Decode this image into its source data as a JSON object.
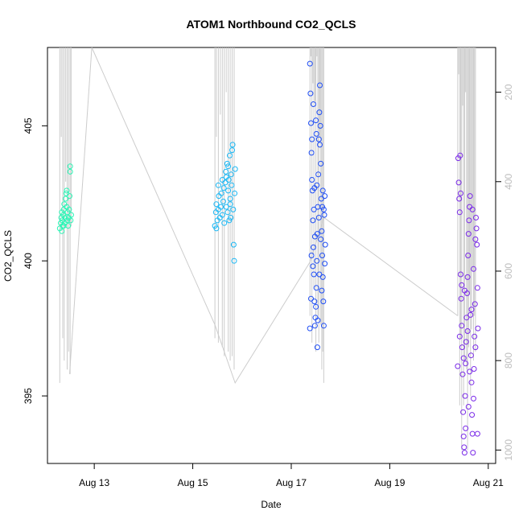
{
  "chart_data": {
    "type": "scatter",
    "title": "ATOM1 Northbound CO2_QCLS",
    "xlabel": "Date",
    "ylabel": "CO2_QCLS",
    "x_ticks": [
      "Aug 13",
      "Aug 15",
      "Aug 17",
      "Aug 19",
      "Aug 21"
    ],
    "x_tick_days": [
      13,
      15,
      17,
      19,
      21
    ],
    "xlim_days": [
      12.05,
      21.15
    ],
    "y_ticks": [
      395,
      400,
      405
    ],
    "ylim": [
      392.5,
      407.9
    ],
    "y2_ticks": [
      200,
      400,
      600,
      800,
      1000
    ],
    "y2lim": [
      1030,
      100
    ],
    "y2_reversed": true,
    "line_color": "#cccccc",
    "point_colors": [
      "#2af5b5",
      "#1ab8f5",
      "#1f4ef5",
      "#7a2ae8"
    ],
    "grid": false,
    "series": [
      {
        "label_day_range": [
          12.3,
          12.5
        ],
        "values": [
          [
            12.3,
            401.2
          ],
          [
            12.32,
            401.4
          ],
          [
            12.33,
            401.6
          ],
          [
            12.34,
            401.8
          ],
          [
            12.35,
            401.5
          ],
          [
            12.36,
            401.3
          ],
          [
            12.37,
            401.7
          ],
          [
            12.38,
            401.9
          ],
          [
            12.39,
            402.1
          ],
          [
            12.4,
            401.4
          ],
          [
            12.41,
            401.6
          ],
          [
            12.42,
            402.3
          ],
          [
            12.43,
            402.5
          ],
          [
            12.44,
            402.6
          ],
          [
            12.45,
            401.5
          ],
          [
            12.46,
            401.8
          ],
          [
            12.47,
            401.3
          ],
          [
            12.48,
            401.6
          ],
          [
            12.49,
            401.9
          ],
          [
            12.5,
            402.4
          ],
          [
            12.51,
            403.3
          ],
          [
            12.51,
            403.5
          ],
          [
            12.52,
            401.5
          ],
          [
            12.53,
            401.7
          ],
          [
            12.34,
            401.1
          ],
          [
            12.38,
            401.3
          ],
          [
            12.44,
            402.0
          ]
        ],
        "altitude": [
          [
            12.3,
            850
          ],
          [
            12.33,
            300
          ],
          [
            12.36,
            750
          ],
          [
            12.39,
            800
          ],
          [
            12.42,
            400
          ],
          [
            12.45,
            820
          ],
          [
            12.48,
            780
          ],
          [
            12.51,
            830
          ],
          [
            12.53,
            500
          ]
        ]
      },
      {
        "label_day_range": [
          15.4,
          15.9
        ],
        "values": [
          [
            15.45,
            401.3
          ],
          [
            15.47,
            401.8
          ],
          [
            15.48,
            402.1
          ],
          [
            15.5,
            401.5
          ],
          [
            15.52,
            401.9
          ],
          [
            15.53,
            402.4
          ],
          [
            15.55,
            401.6
          ],
          [
            15.57,
            402.0
          ],
          [
            15.58,
            402.5
          ],
          [
            15.6,
            401.7
          ],
          [
            15.62,
            402.2
          ],
          [
            15.63,
            402.7
          ],
          [
            15.64,
            401.4
          ],
          [
            15.66,
            402.9
          ],
          [
            15.67,
            403.3
          ],
          [
            15.68,
            402.0
          ],
          [
            15.7,
            403.6
          ],
          [
            15.71,
            401.8
          ],
          [
            15.72,
            402.6
          ],
          [
            15.73,
            403.0
          ],
          [
            15.74,
            401.5
          ],
          [
            15.75,
            403.9
          ],
          [
            15.76,
            402.3
          ],
          [
            15.77,
            401.6
          ],
          [
            15.78,
            403.2
          ],
          [
            15.79,
            402.8
          ],
          [
            15.8,
            404.1
          ],
          [
            15.81,
            404.3
          ],
          [
            15.82,
            401.9
          ],
          [
            15.83,
            400.6
          ],
          [
            15.84,
            400.0
          ],
          [
            15.85,
            402.5
          ],
          [
            15.86,
            403.4
          ],
          [
            15.48,
            401.2
          ],
          [
            15.52,
            402.8
          ],
          [
            15.6,
            403.0
          ],
          [
            15.68,
            403.1
          ],
          [
            15.72,
            403.5
          ],
          [
            15.76,
            402.1
          ]
        ],
        "altitude": [
          [
            15.45,
            750
          ],
          [
            15.48,
            300
          ],
          [
            15.52,
            760
          ],
          [
            15.56,
            250
          ],
          [
            15.6,
            770
          ],
          [
            15.64,
            790
          ],
          [
            15.68,
            200
          ],
          [
            15.72,
            780
          ],
          [
            15.76,
            800
          ],
          [
            15.8,
            790
          ],
          [
            15.84,
            820
          ]
        ]
      },
      {
        "label_day_range": [
          17.3,
          17.7
        ],
        "values": [
          [
            17.38,
            407.3
          ],
          [
            17.39,
            406.2
          ],
          [
            17.4,
            405.1
          ],
          [
            17.41,
            404.0
          ],
          [
            17.42,
            403.0
          ],
          [
            17.43,
            402.6
          ],
          [
            17.44,
            401.5
          ],
          [
            17.45,
            400.5
          ],
          [
            17.46,
            399.5
          ],
          [
            17.47,
            398.5
          ],
          [
            17.48,
            397.6
          ],
          [
            17.49,
            397.9
          ],
          [
            17.5,
            398.3
          ],
          [
            17.51,
            399.0
          ],
          [
            17.52,
            400.0
          ],
          [
            17.53,
            401.0
          ],
          [
            17.54,
            402.0
          ],
          [
            17.55,
            403.2
          ],
          [
            17.56,
            404.5
          ],
          [
            17.57,
            405.5
          ],
          [
            17.58,
            406.5
          ],
          [
            17.59,
            405.0
          ],
          [
            17.6,
            403.6
          ],
          [
            17.61,
            402.3
          ],
          [
            17.62,
            401.1
          ],
          [
            17.63,
            400.2
          ],
          [
            17.64,
            399.4
          ],
          [
            17.65,
            398.5
          ],
          [
            17.66,
            397.6
          ],
          [
            17.67,
            401.7
          ],
          [
            17.68,
            402.4
          ],
          [
            17.69,
            400.6
          ],
          [
            17.4,
            398.6
          ],
          [
            17.44,
            399.8
          ],
          [
            17.48,
            400.9
          ],
          [
            17.52,
            402.8
          ],
          [
            17.56,
            401.6
          ],
          [
            17.6,
            400.8
          ],
          [
            17.64,
            402.6
          ],
          [
            17.68,
            399.9
          ],
          [
            17.42,
            404.5
          ],
          [
            17.5,
            405.2
          ],
          [
            17.58,
            404.3
          ],
          [
            17.62,
            398.9
          ],
          [
            17.66,
            401.9
          ],
          [
            17.46,
            401.9
          ],
          [
            17.54,
            397.8
          ],
          [
            17.38,
            397.5
          ],
          [
            17.41,
            400.2
          ],
          [
            17.47,
            402.7
          ],
          [
            17.53,
            396.8
          ],
          [
            17.57,
            399.5
          ],
          [
            17.63,
            402.0
          ],
          [
            17.45,
            405.8
          ],
          [
            17.51,
            404.7
          ]
        ],
        "altitude": [
          [
            17.38,
            700
          ],
          [
            17.4,
            120
          ],
          [
            17.42,
            760
          ],
          [
            17.44,
            180
          ],
          [
            17.46,
            640
          ],
          [
            17.48,
            220
          ],
          [
            17.5,
            780
          ],
          [
            17.52,
            120
          ],
          [
            17.54,
            700
          ],
          [
            17.56,
            760
          ],
          [
            17.58,
            300
          ],
          [
            17.6,
            720
          ],
          [
            17.62,
            820
          ],
          [
            17.64,
            780
          ],
          [
            17.66,
            850
          ]
        ]
      },
      {
        "label_day_range": [
          20.3,
          20.8
        ],
        "values": [
          [
            20.38,
            396.1
          ],
          [
            20.39,
            403.8
          ],
          [
            20.4,
            402.9
          ],
          [
            20.41,
            402.3
          ],
          [
            20.42,
            401.8
          ],
          [
            20.43,
            403.9
          ],
          [
            20.44,
            399.5
          ],
          [
            20.45,
            398.6
          ],
          [
            20.46,
            397.6
          ],
          [
            20.47,
            396.8
          ],
          [
            20.48,
            395.8
          ],
          [
            20.49,
            394.4
          ],
          [
            20.5,
            393.5
          ],
          [
            20.51,
            393.1
          ],
          [
            20.52,
            392.9
          ],
          [
            20.53,
            395.0
          ],
          [
            20.54,
            396.2
          ],
          [
            20.55,
            397.0
          ],
          [
            20.56,
            397.9
          ],
          [
            20.57,
            398.8
          ],
          [
            20.58,
            399.4
          ],
          [
            20.59,
            400.2
          ],
          [
            20.6,
            401.0
          ],
          [
            20.61,
            401.5
          ],
          [
            20.62,
            402.0
          ],
          [
            20.63,
            402.4
          ],
          [
            20.64,
            398.0
          ],
          [
            20.65,
            396.5
          ],
          [
            20.66,
            395.5
          ],
          [
            20.67,
            394.3
          ],
          [
            20.68,
            393.6
          ],
          [
            20.69,
            392.9
          ],
          [
            20.7,
            394.9
          ],
          [
            20.71,
            396.0
          ],
          [
            20.72,
            397.2
          ],
          [
            20.73,
            398.4
          ],
          [
            20.74,
            400.8
          ],
          [
            20.75,
            401.6
          ],
          [
            20.76,
            401.2
          ],
          [
            20.77,
            400.6
          ],
          [
            20.78,
            399.0
          ],
          [
            20.79,
            397.5
          ],
          [
            20.42,
            397.2
          ],
          [
            20.46,
            399.1
          ],
          [
            20.5,
            396.4
          ],
          [
            20.54,
            393.8
          ],
          [
            20.58,
            397.4
          ],
          [
            20.62,
            395.9
          ],
          [
            20.66,
            398.2
          ],
          [
            20.7,
            399.7
          ],
          [
            20.74,
            396.8
          ],
          [
            20.78,
            393.6
          ],
          [
            20.44,
            402.5
          ],
          [
            20.52,
            398.9
          ],
          [
            20.6,
            394.6
          ],
          [
            20.68,
            401.9
          ]
        ],
        "altitude": [
          [
            20.38,
            700
          ],
          [
            20.4,
            160
          ],
          [
            20.42,
            900
          ],
          [
            20.44,
            750
          ],
          [
            20.46,
            1000
          ],
          [
            20.48,
            230
          ],
          [
            20.5,
            900
          ],
          [
            20.52,
            800
          ],
          [
            20.54,
            200
          ],
          [
            20.56,
            820
          ],
          [
            20.58,
            1000
          ],
          [
            20.6,
            770
          ],
          [
            20.62,
            650
          ],
          [
            20.64,
            880
          ],
          [
            20.66,
            730
          ],
          [
            20.68,
            600
          ],
          [
            20.7,
            800
          ],
          [
            20.72,
            700
          ],
          [
            20.74,
            780
          ]
        ]
      }
    ],
    "connector_path": [
      [
        12.5,
        830
      ],
      [
        12.95,
        100
      ],
      [
        15.45,
        720
      ],
      [
        15.86,
        850
      ],
      [
        17.38,
        580
      ],
      [
        17.66,
        480
      ],
      [
        20.38,
        700
      ]
    ]
  }
}
